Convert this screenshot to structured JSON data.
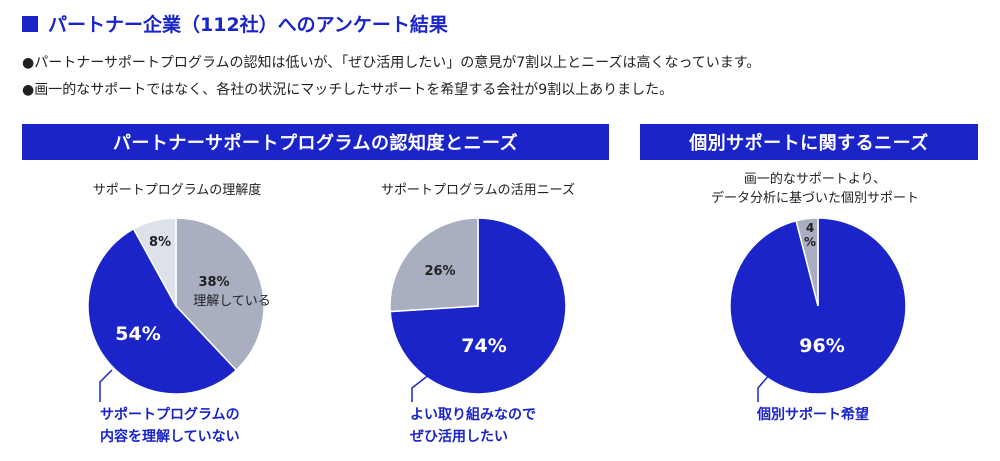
{
  "header": {
    "title": "パートナー企業（112社）へのアンケート結果",
    "bullets": [
      "●パートナーサポートプログラムの認知は低いが、「ぜひ活用したい」の意見が7割以上とニーズは高くなっています。",
      "●画一的なサポートではなく、各社の状況にマッチしたサポートを希望する会社が9割以上ありました。"
    ]
  },
  "sections": {
    "left_banner": "パートナーサポートプログラムの認知度とニーズ",
    "right_banner": "個別サポートに関するニーズ"
  },
  "colors": {
    "blue": "#1a24c8",
    "gray": "#a9aec0",
    "light_gray": "#dde1ea"
  },
  "chart_data": [
    {
      "type": "pie",
      "title": "サポートプログラムの理解度",
      "slices": [
        {
          "label": "理解している",
          "value": 38,
          "display": "38%"
        },
        {
          "label": "",
          "value": 54,
          "display": "54%"
        },
        {
          "label": "",
          "value": 8,
          "display": "8%"
        }
      ],
      "callout": [
        "サポートプログラムの",
        "内容を理解していない"
      ]
    },
    {
      "type": "pie",
      "title": "サポートプログラムの活用ニーズ",
      "slices": [
        {
          "label": "",
          "value": 74,
          "display": "74%"
        },
        {
          "label": "",
          "value": 26,
          "display": "26%"
        }
      ],
      "callout": [
        "よい取り組みなので",
        "ぜひ活用したい"
      ]
    },
    {
      "type": "pie",
      "title": [
        "画一的なサポートより、",
        "データ分析に基づいた個別サポート"
      ],
      "slices": [
        {
          "label": "",
          "value": 96,
          "display": "96%"
        },
        {
          "label": "",
          "value": 4,
          "display": "4%"
        }
      ],
      "callout": [
        "個別サポート希望"
      ]
    }
  ]
}
